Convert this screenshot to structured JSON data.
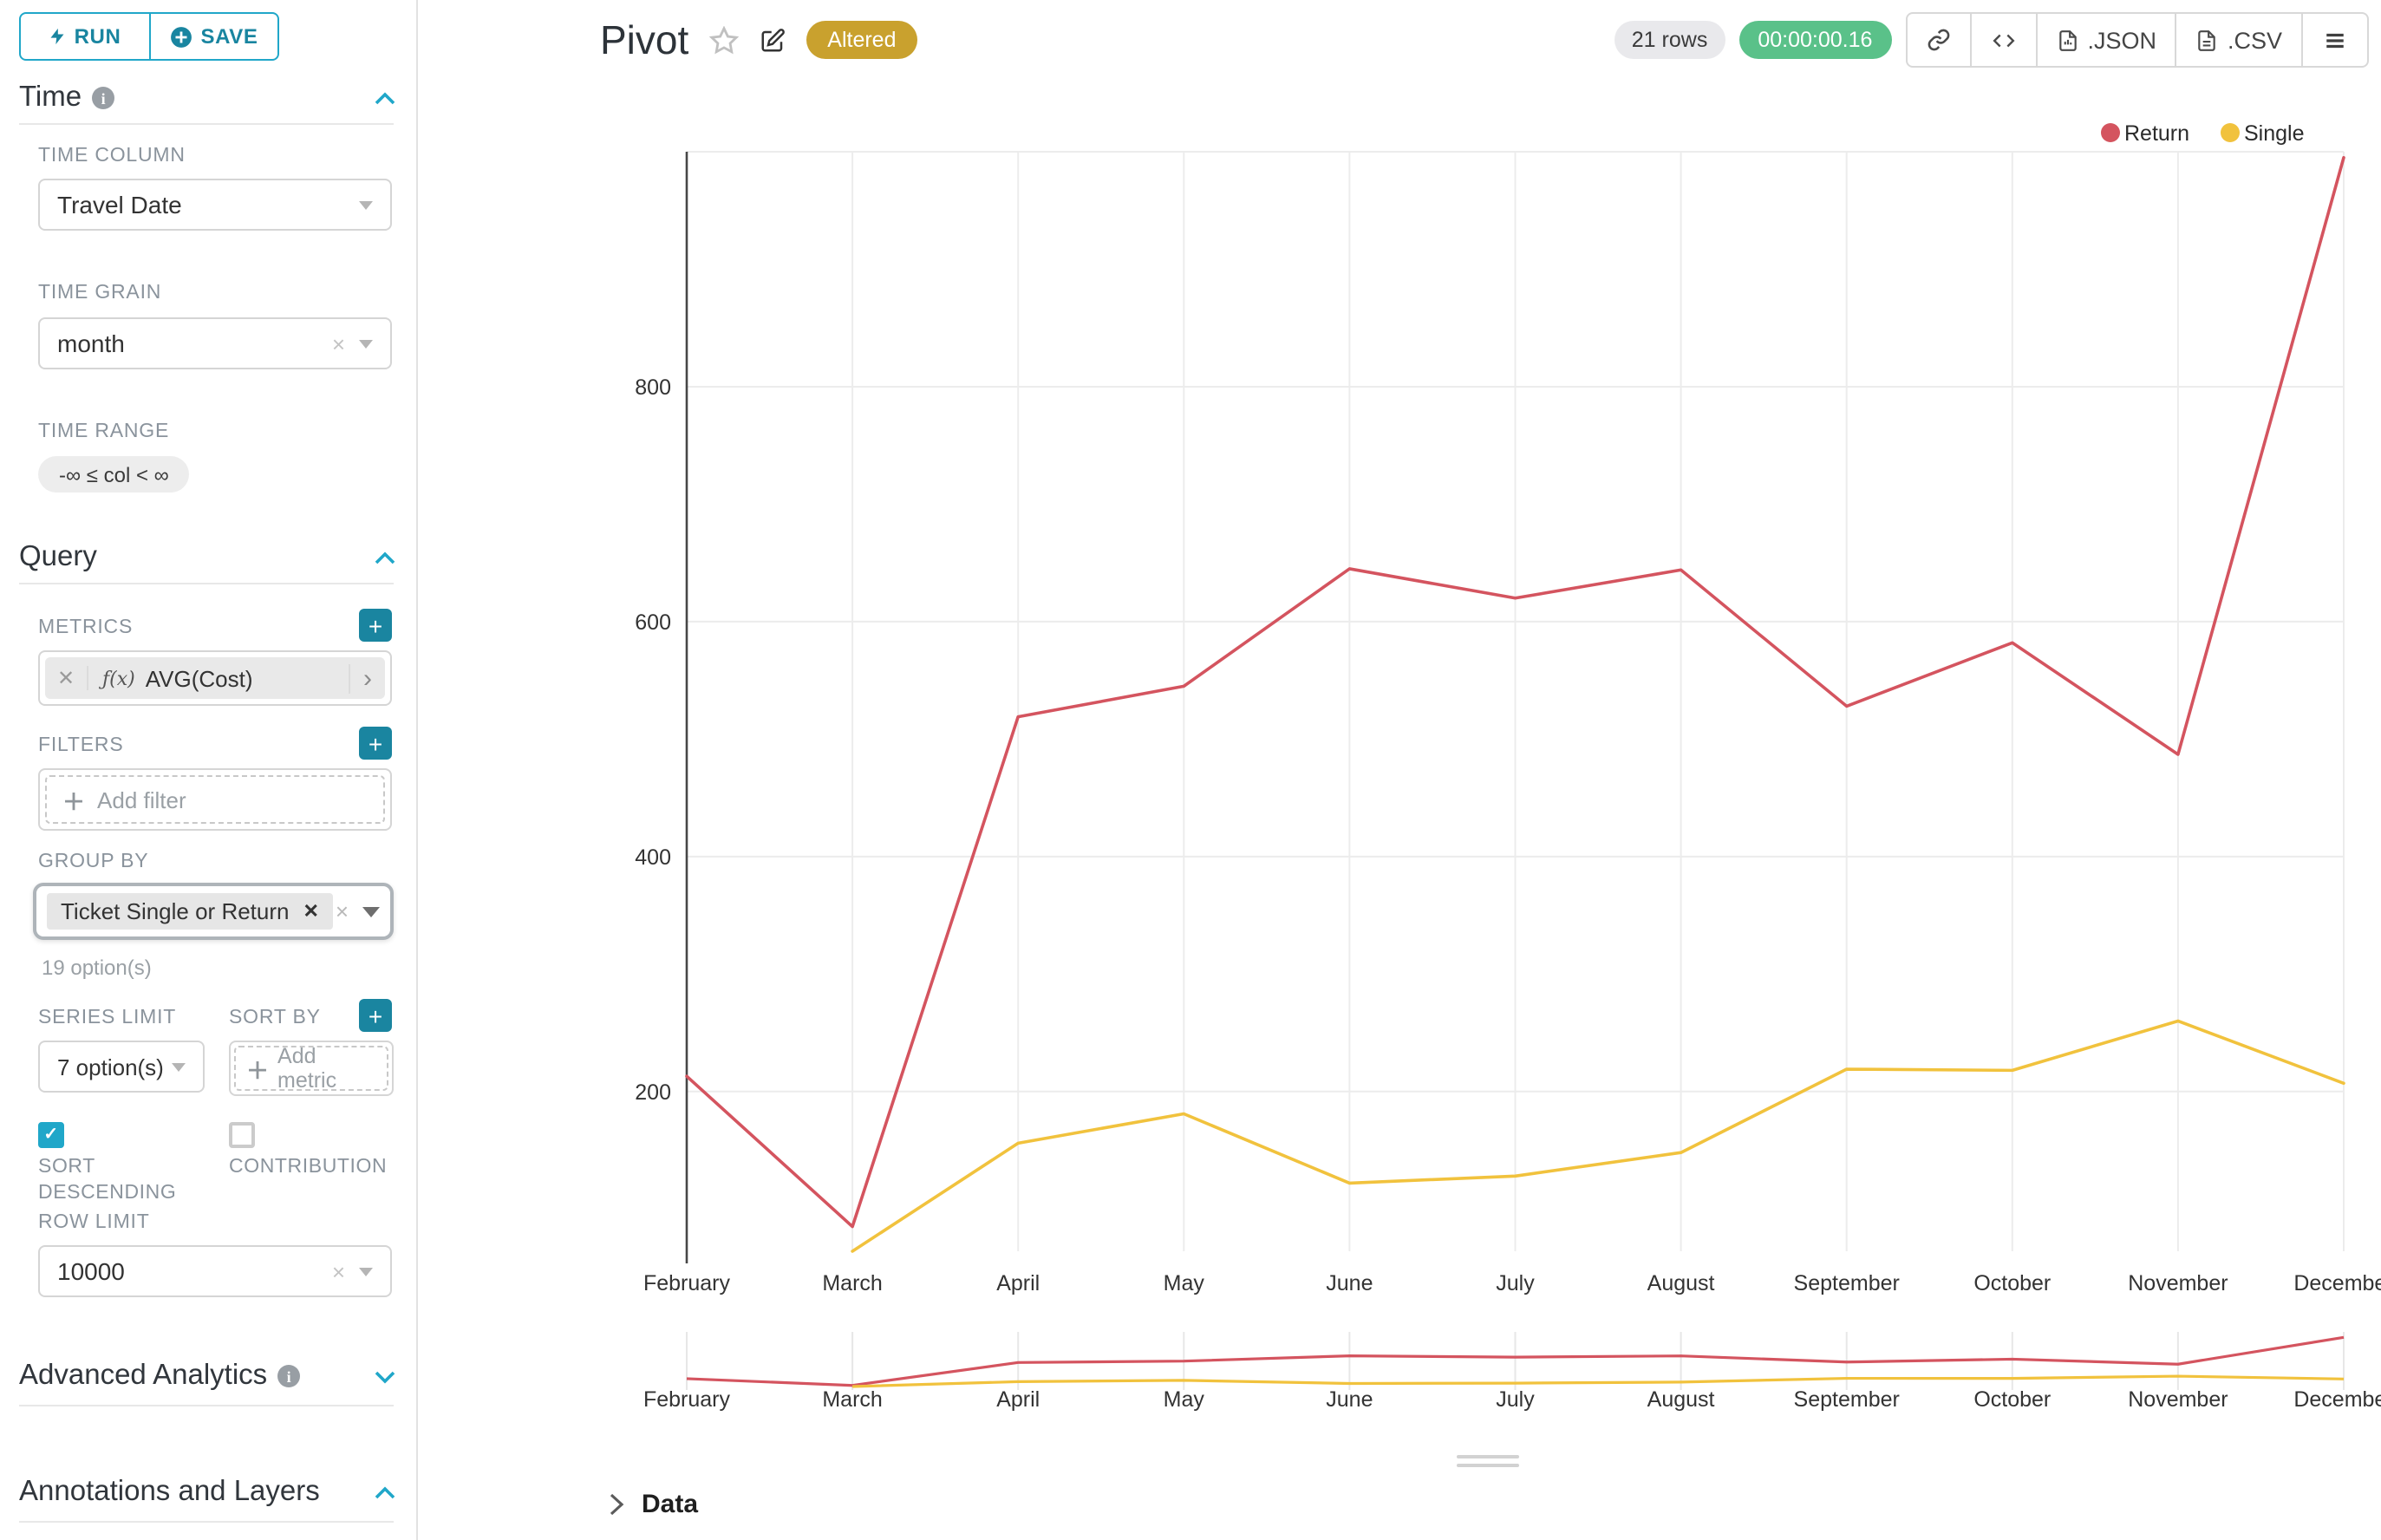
{
  "toolbar": {
    "run_label": "RUN",
    "save_label": "SAVE"
  },
  "sidebar": {
    "time": {
      "title": "Time",
      "time_column_label": "TIME COLUMN",
      "time_column_value": "Travel Date",
      "time_grain_label": "TIME GRAIN",
      "time_grain_value": "month",
      "time_range_label": "TIME RANGE",
      "time_range_value": "-∞ ≤ col < ∞"
    },
    "query": {
      "title": "Query",
      "metrics_label": "METRICS",
      "metric_fx": "ƒ(x)",
      "metric_value": "AVG(Cost)",
      "filters_label": "FILTERS",
      "add_filter_label": "Add filter",
      "group_by_label": "GROUP BY",
      "group_by_tag": "Ticket Single or Return",
      "group_by_hint": "19 option(s)",
      "series_limit_label": "SERIES LIMIT",
      "series_limit_value": "7 option(s)",
      "sort_by_label": "SORT BY",
      "add_metric_label": "Add metric",
      "sort_descending_label": "SORT DESCENDING",
      "sort_descending_checked": true,
      "contribution_label": "CONTRIBUTION",
      "contribution_checked": false,
      "row_limit_label": "ROW LIMIT",
      "row_limit_value": "10000"
    },
    "advanced": {
      "title": "Advanced Analytics"
    },
    "annotations": {
      "title": "Annotations and Layers"
    }
  },
  "header": {
    "title": "Pivot",
    "altered_badge": "Altered",
    "rows_badge": "21 rows",
    "timer": "00:00:00.16",
    "export_json_label": ".JSON",
    "export_csv_label": ".CSV"
  },
  "data_panel": {
    "label": "Data"
  },
  "colors": {
    "primary_teal": "#20a7c9",
    "plus_button_teal": "#1a85a0",
    "timer_green": "#5ac189",
    "altered_gold": "#c9a12e",
    "return_red": "#d4545f",
    "single_yellow": "#f1c23d",
    "gridline": "#ececec",
    "axis_line": "#464646"
  },
  "chart_data": {
    "type": "line",
    "title": "Pivot",
    "categories": [
      "February",
      "March",
      "April",
      "May",
      "June",
      "July",
      "August",
      "September",
      "October",
      "November",
      "December"
    ],
    "series": [
      {
        "name": "Return",
        "color": "#d4545f",
        "values": [
          213,
          85,
          519,
          545,
          645,
          620,
          644,
          528,
          582,
          487,
          995
        ]
      },
      {
        "name": "Single",
        "color": "#f1c23d",
        "values": [
          null,
          64,
          156,
          181,
          122,
          128,
          148,
          219,
          218,
          260,
          207
        ]
      }
    ],
    "xlabel": "",
    "ylabel": "",
    "y_ticks": [
      200,
      400,
      600,
      800
    ],
    "ylim": [
      64,
      1000
    ],
    "grid": true,
    "legend_position": "top-right",
    "has_minimap_datazoom": true
  }
}
